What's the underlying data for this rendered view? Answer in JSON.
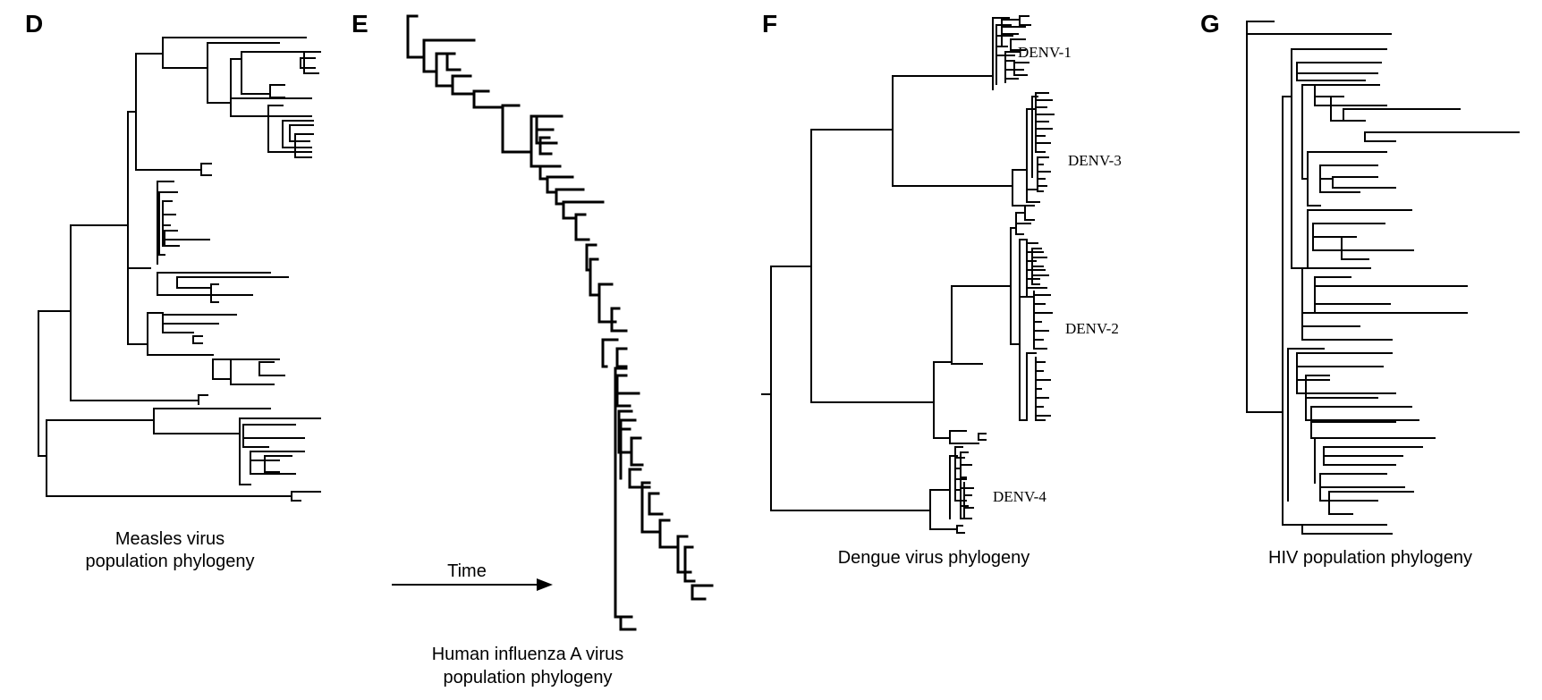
{
  "panels": {
    "d": {
      "letter": "D",
      "caption_line1": "Measles virus",
      "caption_line2": "population phylogeny"
    },
    "e": {
      "letter": "E",
      "time_label": "Time",
      "caption_line1": "Human influenza A virus",
      "caption_line2": "population phylogeny"
    },
    "f": {
      "letter": "F",
      "caption": "Dengue virus phylogeny",
      "clades": [
        "DENV-1",
        "DENV-3",
        "DENV-2",
        "DENV-4"
      ]
    },
    "g": {
      "letter": "G",
      "caption": "HIV population phylogeny"
    }
  },
  "colors": {
    "ink": "#000000",
    "background": "#ffffff"
  }
}
